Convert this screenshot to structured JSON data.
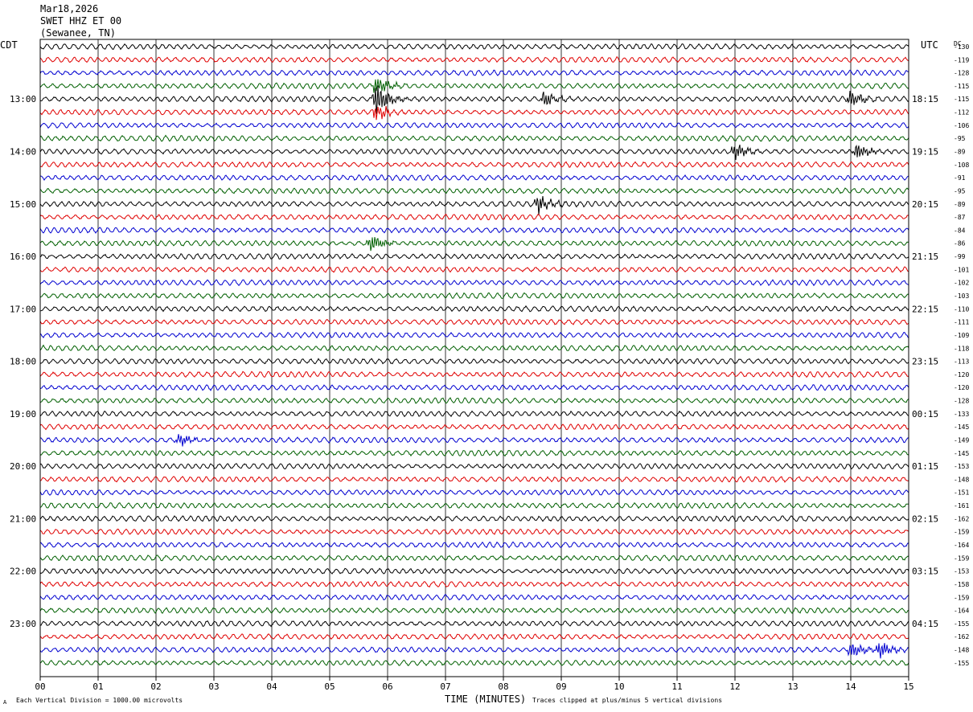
{
  "header": {
    "date": "Mar18,2026",
    "station": "SWET HHZ ET 00",
    "location": "(Sewanee, TN)"
  },
  "left_axis_label": "CDT",
  "right_axis_label": "UTC",
  "dc_label": "DC",
  "x_axis_title": "TIME (MINUTES)",
  "footer": {
    "scale_note": "Each Vertical Division = 1000.00 microvolts",
    "clip_note": "Traces clipped at plus/minus 5 vertical divisions",
    "mark": "A"
  },
  "colors": {
    "trace_cycle": [
      "#000000",
      "#e00000",
      "#0000d0",
      "#006000"
    ],
    "grid": "#000000",
    "frame": "#000000"
  },
  "chart_data": {
    "type": "line",
    "title": "",
    "xlabel": "TIME (MINUTES)",
    "x_ticks": [
      "00",
      "01",
      "02",
      "03",
      "04",
      "05",
      "06",
      "07",
      "08",
      "09",
      "10",
      "11",
      "12",
      "13",
      "14",
      "15"
    ],
    "xlim": [
      0,
      15
    ],
    "trace_minutes_each": 15,
    "left_time_labels": [
      "13:00",
      "14:00",
      "15:00",
      "16:00",
      "17:00",
      "18:00",
      "19:00",
      "20:00",
      "21:00",
      "22:00",
      "23:00"
    ],
    "right_time_labels": [
      "18:15",
      "19:15",
      "20:15",
      "21:15",
      "22:15",
      "23:15",
      "00:15",
      "01:15",
      "02:15",
      "03:15",
      "04:15"
    ],
    "dc_offsets": [
      -130,
      -119,
      -128,
      -115,
      -115,
      -112,
      -106,
      -95,
      -89,
      -108,
      -91,
      -95,
      -89,
      -87,
      -84,
      -86,
      -99,
      -101,
      -102,
      -103,
      -110,
      -111,
      -109,
      -118,
      -113,
      -120,
      -120,
      -128,
      -133,
      -145,
      -149,
      -145,
      -153,
      -148,
      -151,
      -161,
      -162,
      -159,
      -164,
      -159,
      -153,
      -158,
      -159,
      -164,
      -155,
      -162,
      -148,
      -155
    ],
    "events": [
      {
        "trace": 4,
        "minute": 5.8,
        "amplitude": 2.6
      },
      {
        "trace": 3,
        "minute": 5.8,
        "amplitude": 1.4
      },
      {
        "trace": 5,
        "minute": 5.8,
        "amplitude": 1.3
      },
      {
        "trace": 4,
        "minute": 8.7,
        "amplitude": 1.2
      },
      {
        "trace": 4,
        "minute": 14.0,
        "amplitude": 1.3
      },
      {
        "trace": 8,
        "minute": 12.0,
        "amplitude": 1.3
      },
      {
        "trace": 8,
        "minute": 14.1,
        "amplitude": 1.2
      },
      {
        "trace": 12,
        "minute": 8.6,
        "amplitude": 1.3
      },
      {
        "trace": 15,
        "minute": 5.7,
        "amplitude": 1.4
      },
      {
        "trace": 30,
        "minute": 2.4,
        "amplitude": 1.0
      },
      {
        "trace": 46,
        "minute": 14.0,
        "amplitude": 1.3
      },
      {
        "trace": 46,
        "minute": 14.5,
        "amplitude": 1.2
      }
    ]
  }
}
